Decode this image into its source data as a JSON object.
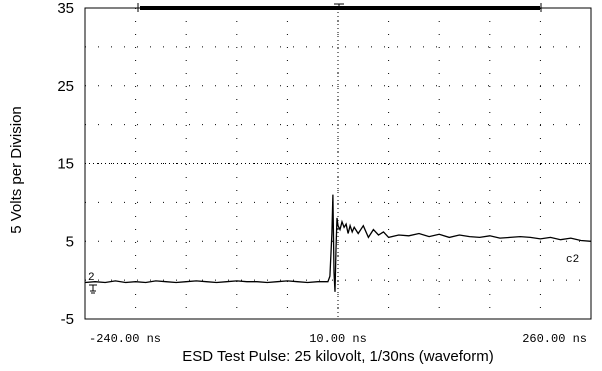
{
  "chart_data": {
    "type": "line",
    "xlabel": "ESD Test Pulse:  25 kilovolt, 1/30ns (waveform)",
    "ylabel": "5 Volts per Division",
    "ylim": [
      -5,
      35
    ],
    "xlim": [
      -240,
      260
    ],
    "y_tick_labels": [
      "35",
      "25",
      "15",
      "5",
      "-5"
    ],
    "y_tick_values": [
      35,
      25,
      15,
      5,
      -5
    ],
    "x_tick_labels": [
      "-240.00 ns",
      "10.00 ns",
      "260.00 ns"
    ],
    "x_tick_values": [
      -240,
      10,
      260
    ],
    "grid": "dotted",
    "channel_marker": "2",
    "trace_label": "c2",
    "series": [
      {
        "values_x": [
          -240,
          -230,
          -220,
          -210,
          -200,
          -190,
          -180,
          -170,
          -160,
          -150,
          -140,
          -130,
          -120,
          -110,
          -100,
          -90,
          -80,
          -70,
          -60,
          -50,
          -40,
          -30,
          -20,
          -10,
          0,
          2,
          4,
          5,
          6,
          7,
          8,
          9,
          10,
          12,
          14,
          16,
          18,
          20,
          22,
          24,
          26,
          30,
          35,
          40,
          45,
          50,
          55,
          60,
          70,
          80,
          90,
          100,
          110,
          120,
          130,
          140,
          150,
          160,
          170,
          180,
          190,
          200,
          210,
          220,
          230,
          240,
          250,
          260
        ],
        "values_y": [
          -0.3,
          -0.2,
          -0.3,
          -0.1,
          -0.3,
          -0.2,
          -0.3,
          -0.1,
          -0.2,
          -0.3,
          -0.2,
          -0.1,
          -0.2,
          -0.3,
          -0.2,
          -0.1,
          -0.2,
          -0.2,
          -0.3,
          -0.2,
          -0.1,
          -0.2,
          -0.3,
          -0.2,
          -0.2,
          0.5,
          6.0,
          11.0,
          1.0,
          -1.5,
          4.0,
          8.0,
          7.0,
          6.5,
          7.5,
          6.8,
          7.2,
          6.0,
          7.0,
          6.2,
          6.8,
          6.0,
          7.0,
          5.5,
          6.5,
          5.8,
          6.2,
          5.5,
          5.8,
          5.7,
          6.0,
          5.6,
          5.9,
          5.5,
          5.8,
          5.6,
          5.5,
          5.7,
          5.4,
          5.5,
          5.6,
          5.5,
          5.3,
          5.5,
          5.2,
          5.4,
          5.1,
          5.0
        ]
      }
    ]
  }
}
